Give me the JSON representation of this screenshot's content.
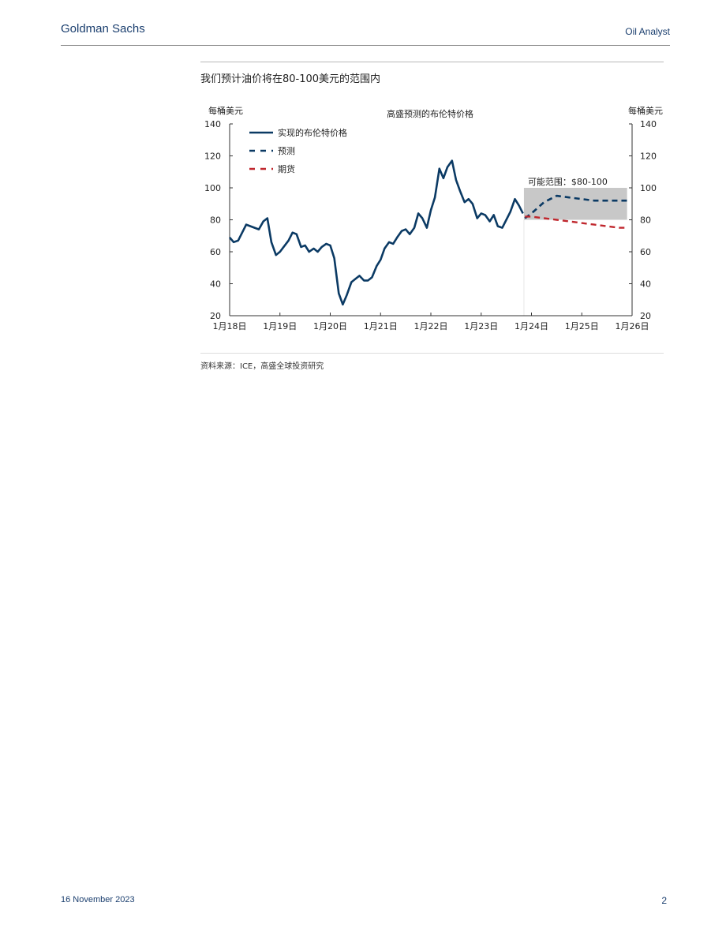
{
  "header": {
    "brand": "Goldman Sachs",
    "report": "Oil Analyst"
  },
  "exhibit": {
    "title": "我们预计油价将在80-100美元的范围内",
    "source": "资料来源：ICE，高盛全球投资研究"
  },
  "footer": {
    "date": "16 November 2023",
    "page": "2"
  },
  "chart_data": {
    "type": "line",
    "title": "高盛预测的布伦特价格",
    "ylabel_left": "每桶美元",
    "ylabel_right": "每桶美元",
    "ylim": [
      20,
      140
    ],
    "yticks": [
      20,
      40,
      60,
      80,
      100,
      120,
      140
    ],
    "xlim": [
      2018.0,
      2026.0
    ],
    "xticks": [
      {
        "value": 2018,
        "label": "1月18日"
      },
      {
        "value": 2019,
        "label": "1月19日"
      },
      {
        "value": 2020,
        "label": "1月20日"
      },
      {
        "value": 2021,
        "label": "1月21日"
      },
      {
        "value": 2022,
        "label": "1月22日"
      },
      {
        "value": 2023,
        "label": "1月23日"
      },
      {
        "value": 2024,
        "label": "1月24日"
      },
      {
        "value": 2025,
        "label": "1月25日"
      },
      {
        "value": 2026,
        "label": "1月26日"
      }
    ],
    "legend": {
      "placement": "top-left",
      "entries": [
        {
          "key": "realized",
          "label": "实现的布伦特价格"
        },
        {
          "key": "forecast",
          "label": "预测"
        },
        {
          "key": "futures",
          "label": "期货"
        }
      ]
    },
    "band": {
      "label": "可能范围：$80-100",
      "x0": 2023.85,
      "x1": 2025.9,
      "y0": 80,
      "y1": 100
    },
    "colors": {
      "realized": "#0b3a64",
      "forecast": "#0b3a64",
      "futures": "#c0272d",
      "band": "#c8c8c8",
      "axis": "#333333"
    },
    "series": [
      {
        "key": "realized",
        "x": [
          2018.0,
          2018.08,
          2018.17,
          2018.33,
          2018.58,
          2018.67,
          2018.75,
          2018.83,
          2018.92,
          2019.0,
          2019.17,
          2019.25,
          2019.33,
          2019.42,
          2019.5,
          2019.58,
          2019.67,
          2019.75,
          2019.83,
          2019.92,
          2020.0,
          2020.08,
          2020.17,
          2020.25,
          2020.33,
          2020.42,
          2020.5,
          2020.58,
          2020.67,
          2020.75,
          2020.83,
          2020.92,
          2021.0,
          2021.08,
          2021.17,
          2021.25,
          2021.33,
          2021.42,
          2021.5,
          2021.58,
          2021.67,
          2021.75,
          2021.83,
          2021.92,
          2022.0,
          2022.08,
          2022.17,
          2022.25,
          2022.33,
          2022.42,
          2022.5,
          2022.58,
          2022.67,
          2022.75,
          2022.83,
          2022.92,
          2023.0,
          2023.08,
          2023.17,
          2023.25,
          2023.33,
          2023.42,
          2023.5,
          2023.58,
          2023.67,
          2023.75,
          2023.83
        ],
        "y": [
          69,
          66,
          67,
          77,
          74,
          79,
          81,
          66,
          58,
          60,
          67,
          72,
          71,
          63,
          64,
          60,
          62,
          60,
          63,
          65,
          64,
          56,
          34,
          27,
          33,
          41,
          43,
          45,
          42,
          42,
          44,
          51,
          55,
          62,
          66,
          65,
          69,
          73,
          74,
          71,
          75,
          84,
          81,
          75,
          86,
          94,
          112,
          106,
          113,
          117,
          105,
          98,
          91,
          93,
          90,
          81,
          84,
          83,
          79,
          83,
          76,
          75,
          80,
          85,
          93,
          89,
          84
        ]
      },
      {
        "key": "forecast",
        "x": [
          2023.87,
          2024.0,
          2024.25,
          2024.5,
          2024.75,
          2025.0,
          2025.25,
          2025.5,
          2025.75,
          2025.9
        ],
        "y": [
          81,
          84,
          91,
          95,
          94,
          93,
          92,
          92,
          92,
          92
        ]
      },
      {
        "key": "futures",
        "x": [
          2023.87,
          2024.0,
          2024.25,
          2024.5,
          2024.75,
          2025.0,
          2025.25,
          2025.5,
          2025.75,
          2025.9
        ],
        "y": [
          82,
          82,
          81,
          80,
          79,
          78,
          77,
          76,
          75,
          75
        ]
      }
    ]
  }
}
